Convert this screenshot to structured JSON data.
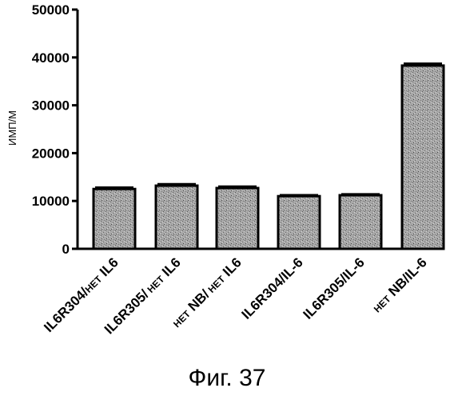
{
  "figure_caption": "Фиг. 37",
  "chart_data": {
    "type": "bar",
    "ylabel": "ИМП/М",
    "ylim": [
      0,
      50000
    ],
    "yticks": [
      "0",
      "10000",
      "20000",
      "30000",
      "40000",
      "50000"
    ],
    "categories": [
      {
        "small": "",
        "main": "IL6R304/",
        "small2": "НЕТ",
        "tail": " IL6"
      },
      {
        "small": "",
        "main": "IL6R305/",
        "small2": " НЕТ",
        "tail": " IL6"
      },
      {
        "small": "НЕТ",
        "main": " NB/",
        "small2": " НЕТ",
        "tail": " IL6"
      },
      {
        "small": "",
        "main": "IL6R304/IL-6",
        "small2": "",
        "tail": ""
      },
      {
        "small": "",
        "main": "IL6R305/IL-6",
        "small2": "",
        "tail": ""
      },
      {
        "small": "НЕТ",
        "main": " NB/IL-6",
        "small2": "",
        "tail": ""
      }
    ],
    "values": [
      12500,
      13200,
      12700,
      11000,
      11200,
      38300
    ],
    "errors": [
      300,
      300,
      300,
      200,
      200,
      400
    ],
    "bar_color": "#9a9a9a"
  }
}
